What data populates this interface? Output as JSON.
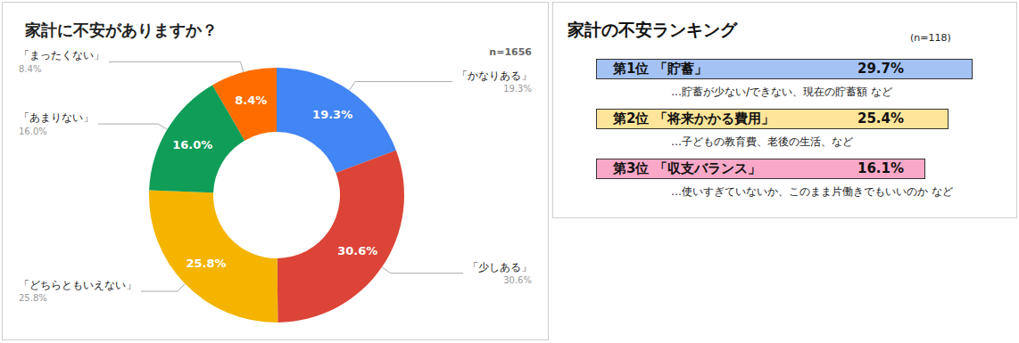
{
  "chart_data": {
    "type": "pie",
    "title": "家計に不安がありますか？",
    "subtitle": "n=1656",
    "categories": [
      "「かなりある」",
      "「少しある」",
      "「どちらともいえない」",
      "「あまりない」",
      "「まったくない」"
    ],
    "values": [
      19.3,
      30.6,
      25.8,
      16.0,
      8.4
    ],
    "value_labels": [
      "19.3%",
      "30.6%",
      "25.8%",
      "16.0%",
      "8.4%"
    ],
    "colors": [
      "#4285f4",
      "#db4437",
      "#f4b400",
      "#0f9d58",
      "#ff6d01"
    ],
    "data_labels": true
  },
  "ranking": {
    "title": "家計の不安ランキング",
    "note": "(n=118)",
    "items": [
      {
        "rank": "第1位",
        "label": "「貯蓄」",
        "value_label": "29.7%",
        "description": "…貯蓄が少ない/できない、現在の貯蓄額 など",
        "color": "#a4c2f4"
      },
      {
        "rank": "第2位",
        "label": "「将来かかる費用」",
        "value_label": "25.4%",
        "description": "…子どもの教育費、老後の生活、など",
        "color": "#ffe599"
      },
      {
        "rank": "第3位",
        "label": "「収支バランス」",
        "value_label": "16.1%",
        "description": "…使いすぎていないか、このまま片働きでもいいのか など",
        "color": "#f9a8c8"
      }
    ]
  }
}
